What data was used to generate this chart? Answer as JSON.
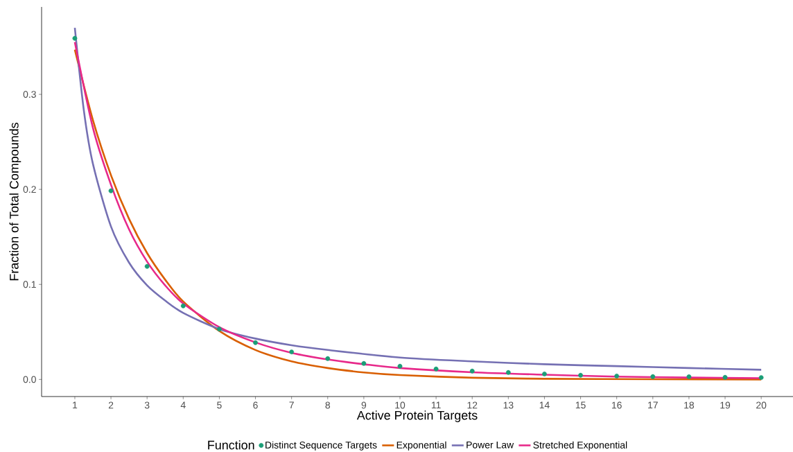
{
  "chart_data": {
    "type": "line",
    "xlabel": "Active Protein Targets",
    "ylabel": "Fraction of Total Compounds",
    "legend_title": "Function",
    "legend": "bottom",
    "grid": false,
    "x": [
      1,
      2,
      3,
      4,
      5,
      6,
      7,
      8,
      9,
      10,
      11,
      12,
      13,
      14,
      15,
      16,
      17,
      18,
      19,
      20
    ],
    "xlim": [
      0.08,
      20.88
    ],
    "ylim": [
      -0.018,
      0.392
    ],
    "xticks": [
      1,
      2,
      3,
      4,
      5,
      6,
      7,
      8,
      9,
      10,
      11,
      12,
      13,
      14,
      15,
      16,
      17,
      18,
      19,
      20
    ],
    "yticks": [
      {
        "value": 0,
        "label": "0.0"
      },
      {
        "value": 0.1,
        "label": "0.1"
      },
      {
        "value": 0.2,
        "label": "0.2"
      },
      {
        "value": 0.3,
        "label": "0.3"
      }
    ],
    "series": [
      {
        "name": "Distinct Sequence Targets",
        "type": "scatter",
        "color": "#1b9e77",
        "values": [
          0.359,
          0.1985,
          0.119,
          0.0774,
          0.053,
          0.0387,
          0.029,
          0.0219,
          0.0168,
          0.0139,
          0.011,
          0.0088,
          0.0073,
          0.0058,
          0.0044,
          0.0036,
          0.003,
          0.0029,
          0.0022,
          0.002
        ]
      },
      {
        "name": "Exponential",
        "color": "#d95f02",
        "x": [
          1,
          1.5,
          2,
          2.5,
          3,
          3.5,
          4,
          5,
          6,
          7,
          8,
          9,
          10,
          12,
          14,
          17,
          20
        ],
        "values": [
          0.347,
          0.273,
          0.215,
          0.169,
          0.133,
          0.105,
          0.082,
          0.051,
          0.031,
          0.019,
          0.012,
          0.0074,
          0.0046,
          0.0018,
          0.0007,
          0.0002,
          0.0
        ]
      },
      {
        "name": "Power Law",
        "color": "#7570b3",
        "x": [
          1,
          1.25,
          1.5,
          2,
          2.5,
          3,
          3.5,
          4,
          5,
          6,
          7,
          8,
          10,
          12,
          14,
          16,
          18,
          20
        ],
        "values": [
          0.37,
          0.283,
          0.227,
          0.161,
          0.123,
          0.099,
          0.083,
          0.07,
          0.053,
          0.043,
          0.036,
          0.031,
          0.023,
          0.019,
          0.016,
          0.014,
          0.012,
          0.0102
        ]
      },
      {
        "name": "Stretched Exponential",
        "color": "#e7298a",
        "x": [
          1,
          1.5,
          2,
          2.5,
          3,
          3.5,
          4,
          5,
          6,
          7,
          8,
          9,
          10,
          12,
          14,
          16,
          18,
          20
        ],
        "values": [
          0.355,
          0.265,
          0.205,
          0.158,
          0.124,
          0.099,
          0.08,
          0.055,
          0.039,
          0.028,
          0.021,
          0.016,
          0.012,
          0.0075,
          0.005,
          0.003,
          0.002,
          0.0013
        ]
      }
    ]
  }
}
